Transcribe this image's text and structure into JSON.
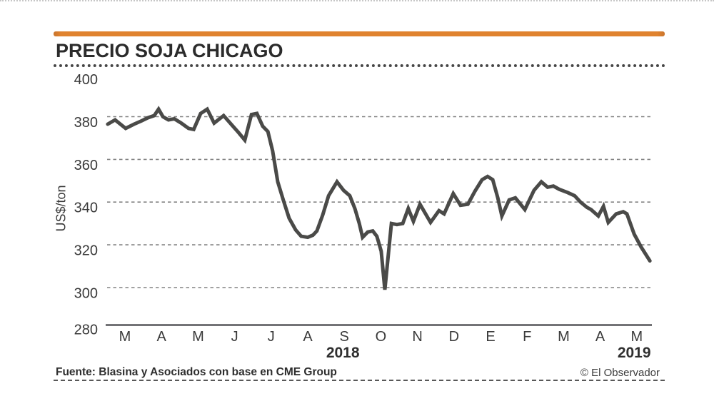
{
  "header": {
    "title": "PRECIO SOJA CHICAGO",
    "accent_color": "#e0832f"
  },
  "chart_data": {
    "type": "line",
    "title": "PRECIO SOJA CHICAGO",
    "ylabel": "US$/ton",
    "ylim": [
      280,
      400
    ],
    "yticks": [
      400,
      380,
      360,
      340,
      320,
      300,
      280
    ],
    "gridline_values": [
      380,
      360,
      340,
      320,
      300
    ],
    "grid": true,
    "legend": "none",
    "line_color": "#4a4a48",
    "x_categories": [
      "M",
      "A",
      "M",
      "J",
      "J",
      "A",
      "S",
      "O",
      "N",
      "D",
      "E",
      "F",
      "M",
      "A",
      "M"
    ],
    "year_labels": [
      {
        "label": "2018",
        "month_index": 5.96
      },
      {
        "label": "2019",
        "month_index": 13.93
      }
    ],
    "points": [
      [
        -0.47,
        376.5
      ],
      [
        -0.27,
        378.5
      ],
      [
        0.02,
        374.5
      ],
      [
        0.25,
        376.5
      ],
      [
        0.45,
        378
      ],
      [
        0.63,
        379.5
      ],
      [
        0.8,
        380.5
      ],
      [
        0.92,
        383.5
      ],
      [
        1.04,
        380
      ],
      [
        1.19,
        378.5
      ],
      [
        1.35,
        379
      ],
      [
        1.54,
        377
      ],
      [
        1.74,
        374.5
      ],
      [
        1.88,
        374
      ],
      [
        2.07,
        381.5
      ],
      [
        2.25,
        383.5
      ],
      [
        2.44,
        377
      ],
      [
        2.7,
        380.5
      ],
      [
        2.93,
        376
      ],
      [
        3.11,
        372.5
      ],
      [
        3.28,
        369
      ],
      [
        3.46,
        381
      ],
      [
        3.61,
        381.5
      ],
      [
        3.77,
        375.5
      ],
      [
        3.91,
        373
      ],
      [
        4.04,
        364
      ],
      [
        4.18,
        349.5
      ],
      [
        4.34,
        340.5
      ],
      [
        4.49,
        332.5
      ],
      [
        4.67,
        327
      ],
      [
        4.82,
        324
      ],
      [
        5.0,
        323.5
      ],
      [
        5.14,
        324.5
      ],
      [
        5.25,
        326.5
      ],
      [
        5.41,
        334
      ],
      [
        5.57,
        343
      ],
      [
        5.8,
        349.5
      ],
      [
        5.98,
        345.5
      ],
      [
        6.15,
        343
      ],
      [
        6.29,
        337
      ],
      [
        6.41,
        330
      ],
      [
        6.5,
        323.5
      ],
      [
        6.64,
        326
      ],
      [
        6.78,
        326.5
      ],
      [
        6.89,
        324
      ],
      [
        7.01,
        317
      ],
      [
        7.11,
        299
      ],
      [
        7.29,
        330
      ],
      [
        7.44,
        329.5
      ],
      [
        7.6,
        330
      ],
      [
        7.75,
        337
      ],
      [
        7.89,
        331
      ],
      [
        8.07,
        339
      ],
      [
        8.36,
        330.5
      ],
      [
        8.59,
        336
      ],
      [
        8.73,
        334.5
      ],
      [
        8.98,
        344
      ],
      [
        9.18,
        338.5
      ],
      [
        9.38,
        339
      ],
      [
        9.57,
        345
      ],
      [
        9.77,
        350.5
      ],
      [
        9.92,
        352
      ],
      [
        10.06,
        350.5
      ],
      [
        10.2,
        342
      ],
      [
        10.31,
        333.5
      ],
      [
        10.51,
        341
      ],
      [
        10.68,
        342
      ],
      [
        10.94,
        336.5
      ],
      [
        11.19,
        345.5
      ],
      [
        11.39,
        349.5
      ],
      [
        11.56,
        347
      ],
      [
        11.72,
        347.5
      ],
      [
        11.88,
        346
      ],
      [
        12.11,
        344.5
      ],
      [
        12.3,
        343
      ],
      [
        12.46,
        340
      ],
      [
        12.64,
        337.5
      ],
      [
        12.75,
        336.5
      ],
      [
        12.95,
        333.5
      ],
      [
        13.09,
        338
      ],
      [
        13.22,
        330.5
      ],
      [
        13.44,
        334.5
      ],
      [
        13.63,
        335.5
      ],
      [
        13.73,
        334.5
      ],
      [
        13.93,
        325
      ],
      [
        14.12,
        319
      ],
      [
        14.36,
        312.5
      ]
    ]
  },
  "footer": {
    "source": "Fuente: Blasina y Asociados con base en CME Group",
    "credit": "© El Observador"
  }
}
